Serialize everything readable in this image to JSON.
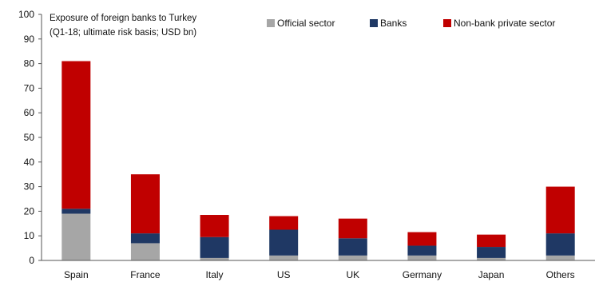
{
  "chart_data": {
    "type": "bar",
    "stacked": true,
    "title": [
      "Exposure of foreign banks to Turkey",
      "(Q1-18; ultimate risk basis; USD bn)"
    ],
    "categories": [
      "Spain",
      "France",
      "Italy",
      "US",
      "UK",
      "Germany",
      "Japan",
      "Others"
    ],
    "series": [
      {
        "name": "Official sector",
        "color": "#a6a6a6",
        "values": [
          19,
          7,
          1,
          2,
          2,
          2,
          1,
          2
        ]
      },
      {
        "name": "Banks",
        "color": "#1f3864",
        "values": [
          2,
          4,
          8.5,
          10.5,
          7,
          4,
          4.5,
          9
        ]
      },
      {
        "name": "Non-bank private sector",
        "color": "#c00000",
        "values": [
          60,
          24,
          9,
          5.5,
          8,
          5.5,
          5,
          19
        ]
      }
    ],
    "yticks": [
      0,
      10,
      20,
      30,
      40,
      50,
      60,
      70,
      80,
      90,
      100
    ],
    "ylim": [
      0,
      100
    ],
    "grid": false,
    "legend_position": "top"
  }
}
